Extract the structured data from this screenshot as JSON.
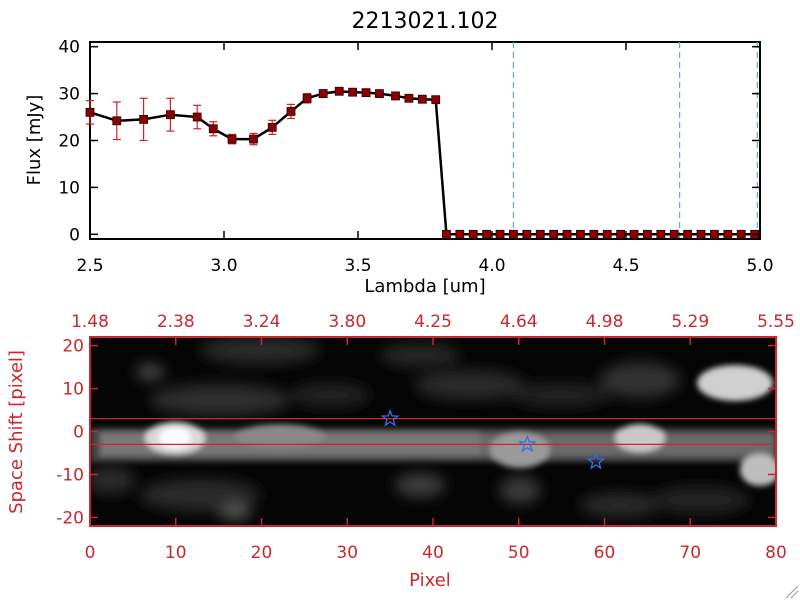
{
  "title": "2213021.102",
  "chart_data": [
    {
      "type": "line",
      "xlabel": "Lambda [um]",
      "ylabel": "Flux [mJy]",
      "xlim": [
        2.5,
        5.0
      ],
      "ylim": [
        -1,
        41
      ],
      "x_ticks": [
        "2.5",
        "3.0",
        "3.5",
        "4.0",
        "4.5",
        "5.0"
      ],
      "y_ticks": [
        "0",
        "10",
        "20",
        "30",
        "40"
      ],
      "grid": false,
      "series": [
        {
          "x": [
            2.5,
            2.6,
            2.7,
            2.8,
            2.9,
            2.96,
            3.03,
            3.11,
            3.18,
            3.25,
            3.31,
            3.37,
            3.43,
            3.48,
            3.53,
            3.58,
            3.64,
            3.69,
            3.74,
            3.79,
            3.83,
            3.88,
            3.93,
            3.98,
            4.03,
            4.08,
            4.13,
            4.18,
            4.23,
            4.28,
            4.33,
            4.38,
            4.43,
            4.48,
            4.53,
            4.58,
            4.63,
            4.68,
            4.73,
            4.78,
            4.83,
            4.88,
            4.93,
            4.98
          ],
          "y": [
            26.0,
            24.2,
            24.5,
            25.5,
            25.0,
            22.5,
            20.3,
            20.3,
            22.8,
            26.2,
            29.0,
            30.0,
            30.5,
            30.3,
            30.2,
            30.0,
            29.5,
            29.0,
            28.8,
            28.7,
            0,
            0,
            0,
            0,
            0,
            0,
            0,
            0,
            0,
            0,
            0,
            0,
            0,
            0,
            0,
            0,
            0,
            0,
            0,
            0,
            0,
            0,
            0,
            0
          ],
          "yerr": [
            2.5,
            4.0,
            4.5,
            3.5,
            2.5,
            1.5,
            1.0,
            1.2,
            1.5,
            1.5,
            1.0,
            0.8,
            0.5,
            0.5,
            0.5,
            0.5,
            0.5,
            0.5,
            0.5,
            0.5,
            0,
            0,
            0,
            0,
            0,
            0,
            0,
            0,
            0,
            0,
            0,
            0,
            0,
            0,
            0,
            0,
            0,
            0,
            0,
            0,
            0,
            0,
            0,
            0
          ],
          "colors": {
            "line": "#000000",
            "marker": "#8b0000",
            "errorbar": "#d22020"
          }
        }
      ],
      "vlines": [
        4.08,
        4.7,
        4.99
      ],
      "vline_color": "#5aaed0"
    },
    {
      "type": "heatmap",
      "xlabel": "Pixel",
      "ylabel": "Space Shift [pixel]",
      "xlim": [
        0,
        80
      ],
      "ylim": [
        -22,
        22
      ],
      "x_ticks": [
        "0",
        "10",
        "20",
        "30",
        "40",
        "50",
        "60",
        "70",
        "80"
      ],
      "y_ticks": [
        "20",
        "10",
        "0",
        "-10",
        "-20"
      ],
      "top_ticks": [
        "1.48",
        "2.38",
        "3.24",
        "3.80",
        "4.25",
        "4.64",
        "4.98",
        "5.29",
        "5.55"
      ],
      "hlines_y": [
        3,
        -3
      ],
      "markers": [
        {
          "x": 35,
          "y": 3
        },
        {
          "x": 51,
          "y": -3
        },
        {
          "x": 59,
          "y": -7
        }
      ],
      "colors": {
        "frame": "#c8282e",
        "marker": "#3a6ee8",
        "hline": "#c8282e"
      }
    }
  ]
}
